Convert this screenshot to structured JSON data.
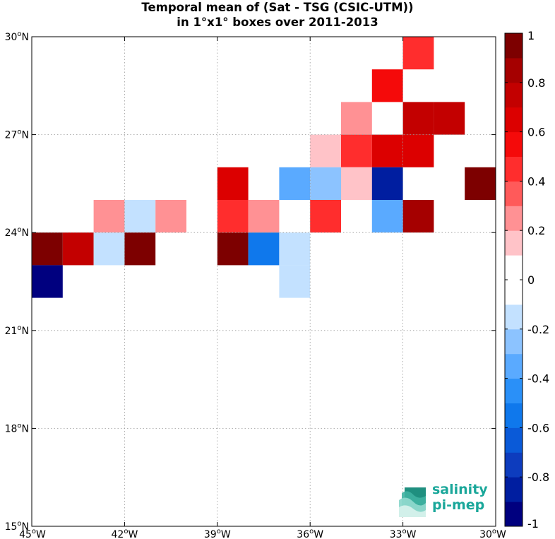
{
  "title": {
    "line1": "Temporal mean of (Sat - TSG (CSIC-UTM))",
    "line2": "in 1°x1° boxes over 2011-2013"
  },
  "logo": {
    "line1": "salinity",
    "line2": "pi-mep"
  },
  "chart_data": {
    "type": "heatmap",
    "x_range": [
      -45,
      -30
    ],
    "y_range": [
      15,
      30
    ],
    "grid": true,
    "xticks": [
      {
        "value": -45,
        "label": "45°W"
      },
      {
        "value": -42,
        "label": "42°W"
      },
      {
        "value": -39,
        "label": "39°W"
      },
      {
        "value": -36,
        "label": "36°W"
      },
      {
        "value": -33,
        "label": "33°W"
      },
      {
        "value": -30,
        "label": "30°W"
      }
    ],
    "yticks": [
      {
        "value": 15,
        "label": "15°N"
      },
      {
        "value": 18,
        "label": "18°N"
      },
      {
        "value": 21,
        "label": "21°N"
      },
      {
        "value": 24,
        "label": "24°N"
      },
      {
        "value": 27,
        "label": "27°N"
      },
      {
        "value": 30,
        "label": "30°N"
      }
    ],
    "cells": [
      {
        "lon": -33,
        "lat": 29,
        "value": 0.4
      },
      {
        "lon": -34,
        "lat": 28,
        "value": 0.55
      },
      {
        "lon": -35,
        "lat": 27,
        "value": 0.25
      },
      {
        "lon": -33,
        "lat": 27,
        "value": 0.75
      },
      {
        "lon": -32,
        "lat": 27,
        "value": 0.75
      },
      {
        "lon": -36,
        "lat": 26,
        "value": 0.12
      },
      {
        "lon": -35,
        "lat": 26,
        "value": 0.45
      },
      {
        "lon": -34,
        "lat": 26,
        "value": 0.65
      },
      {
        "lon": -33,
        "lat": 26,
        "value": 0.65
      },
      {
        "lon": -39,
        "lat": 25,
        "value": 0.65
      },
      {
        "lon": -37,
        "lat": 25,
        "value": -0.35
      },
      {
        "lon": -36,
        "lat": 25,
        "value": -0.25
      },
      {
        "lon": -35,
        "lat": 25,
        "value": 0.12
      },
      {
        "lon": -34,
        "lat": 25,
        "value": -0.85
      },
      {
        "lon": -31,
        "lat": 25,
        "value": 0.95
      },
      {
        "lon": -43,
        "lat": 24,
        "value": 0.25
      },
      {
        "lon": -42,
        "lat": 24,
        "value": -0.12
      },
      {
        "lon": -41,
        "lat": 24,
        "value": 0.25
      },
      {
        "lon": -39,
        "lat": 24,
        "value": 0.45
      },
      {
        "lon": -38,
        "lat": 24,
        "value": 0.25
      },
      {
        "lon": -36,
        "lat": 24,
        "value": 0.45
      },
      {
        "lon": -34,
        "lat": 24,
        "value": -0.35
      },
      {
        "lon": -33,
        "lat": 24,
        "value": 0.85
      },
      {
        "lon": -45,
        "lat": 23,
        "value": 0.95
      },
      {
        "lon": -44,
        "lat": 23,
        "value": 0.75
      },
      {
        "lon": -43,
        "lat": 23,
        "value": -0.12
      },
      {
        "lon": -42,
        "lat": 23,
        "value": 0.95
      },
      {
        "lon": -39,
        "lat": 23,
        "value": 0.95
      },
      {
        "lon": -38,
        "lat": 23,
        "value": -0.55
      },
      {
        "lon": -37,
        "lat": 23,
        "value": -0.12
      },
      {
        "lon": -45,
        "lat": 22,
        "value": -0.95
      },
      {
        "lon": -37,
        "lat": 22,
        "value": -0.12
      }
    ],
    "colorbar": {
      "range": [
        -1,
        1
      ],
      "ticks": [
        {
          "value": 1,
          "label": "1"
        },
        {
          "value": 0.8,
          "label": "0.8"
        },
        {
          "value": 0.6,
          "label": "0.6"
        },
        {
          "value": 0.4,
          "label": "0.4"
        },
        {
          "value": 0.2,
          "label": "0.2"
        },
        {
          "value": 0,
          "label": "0"
        },
        {
          "value": -0.2,
          "label": "-0.2"
        },
        {
          "value": -0.4,
          "label": "-0.4"
        },
        {
          "value": -0.6,
          "label": "-0.6"
        },
        {
          "value": -0.8,
          "label": "-0.8"
        },
        {
          "value": -1,
          "label": "-1"
        }
      ],
      "colors": [
        "#00007f",
        "#001ea0",
        "#0d3cbe",
        "#0a5ad8",
        "#0f78ec",
        "#2a90f8",
        "#5aaaff",
        "#8cc3ff",
        "#c3e1ff",
        "#ffffff",
        "#ffffff",
        "#ffc3c8",
        "#ff9194",
        "#ff5a5a",
        "#ff2d2d",
        "#f50a0a",
        "#dc0000",
        "#c30000",
        "#a50000",
        "#7d0000"
      ]
    }
  }
}
